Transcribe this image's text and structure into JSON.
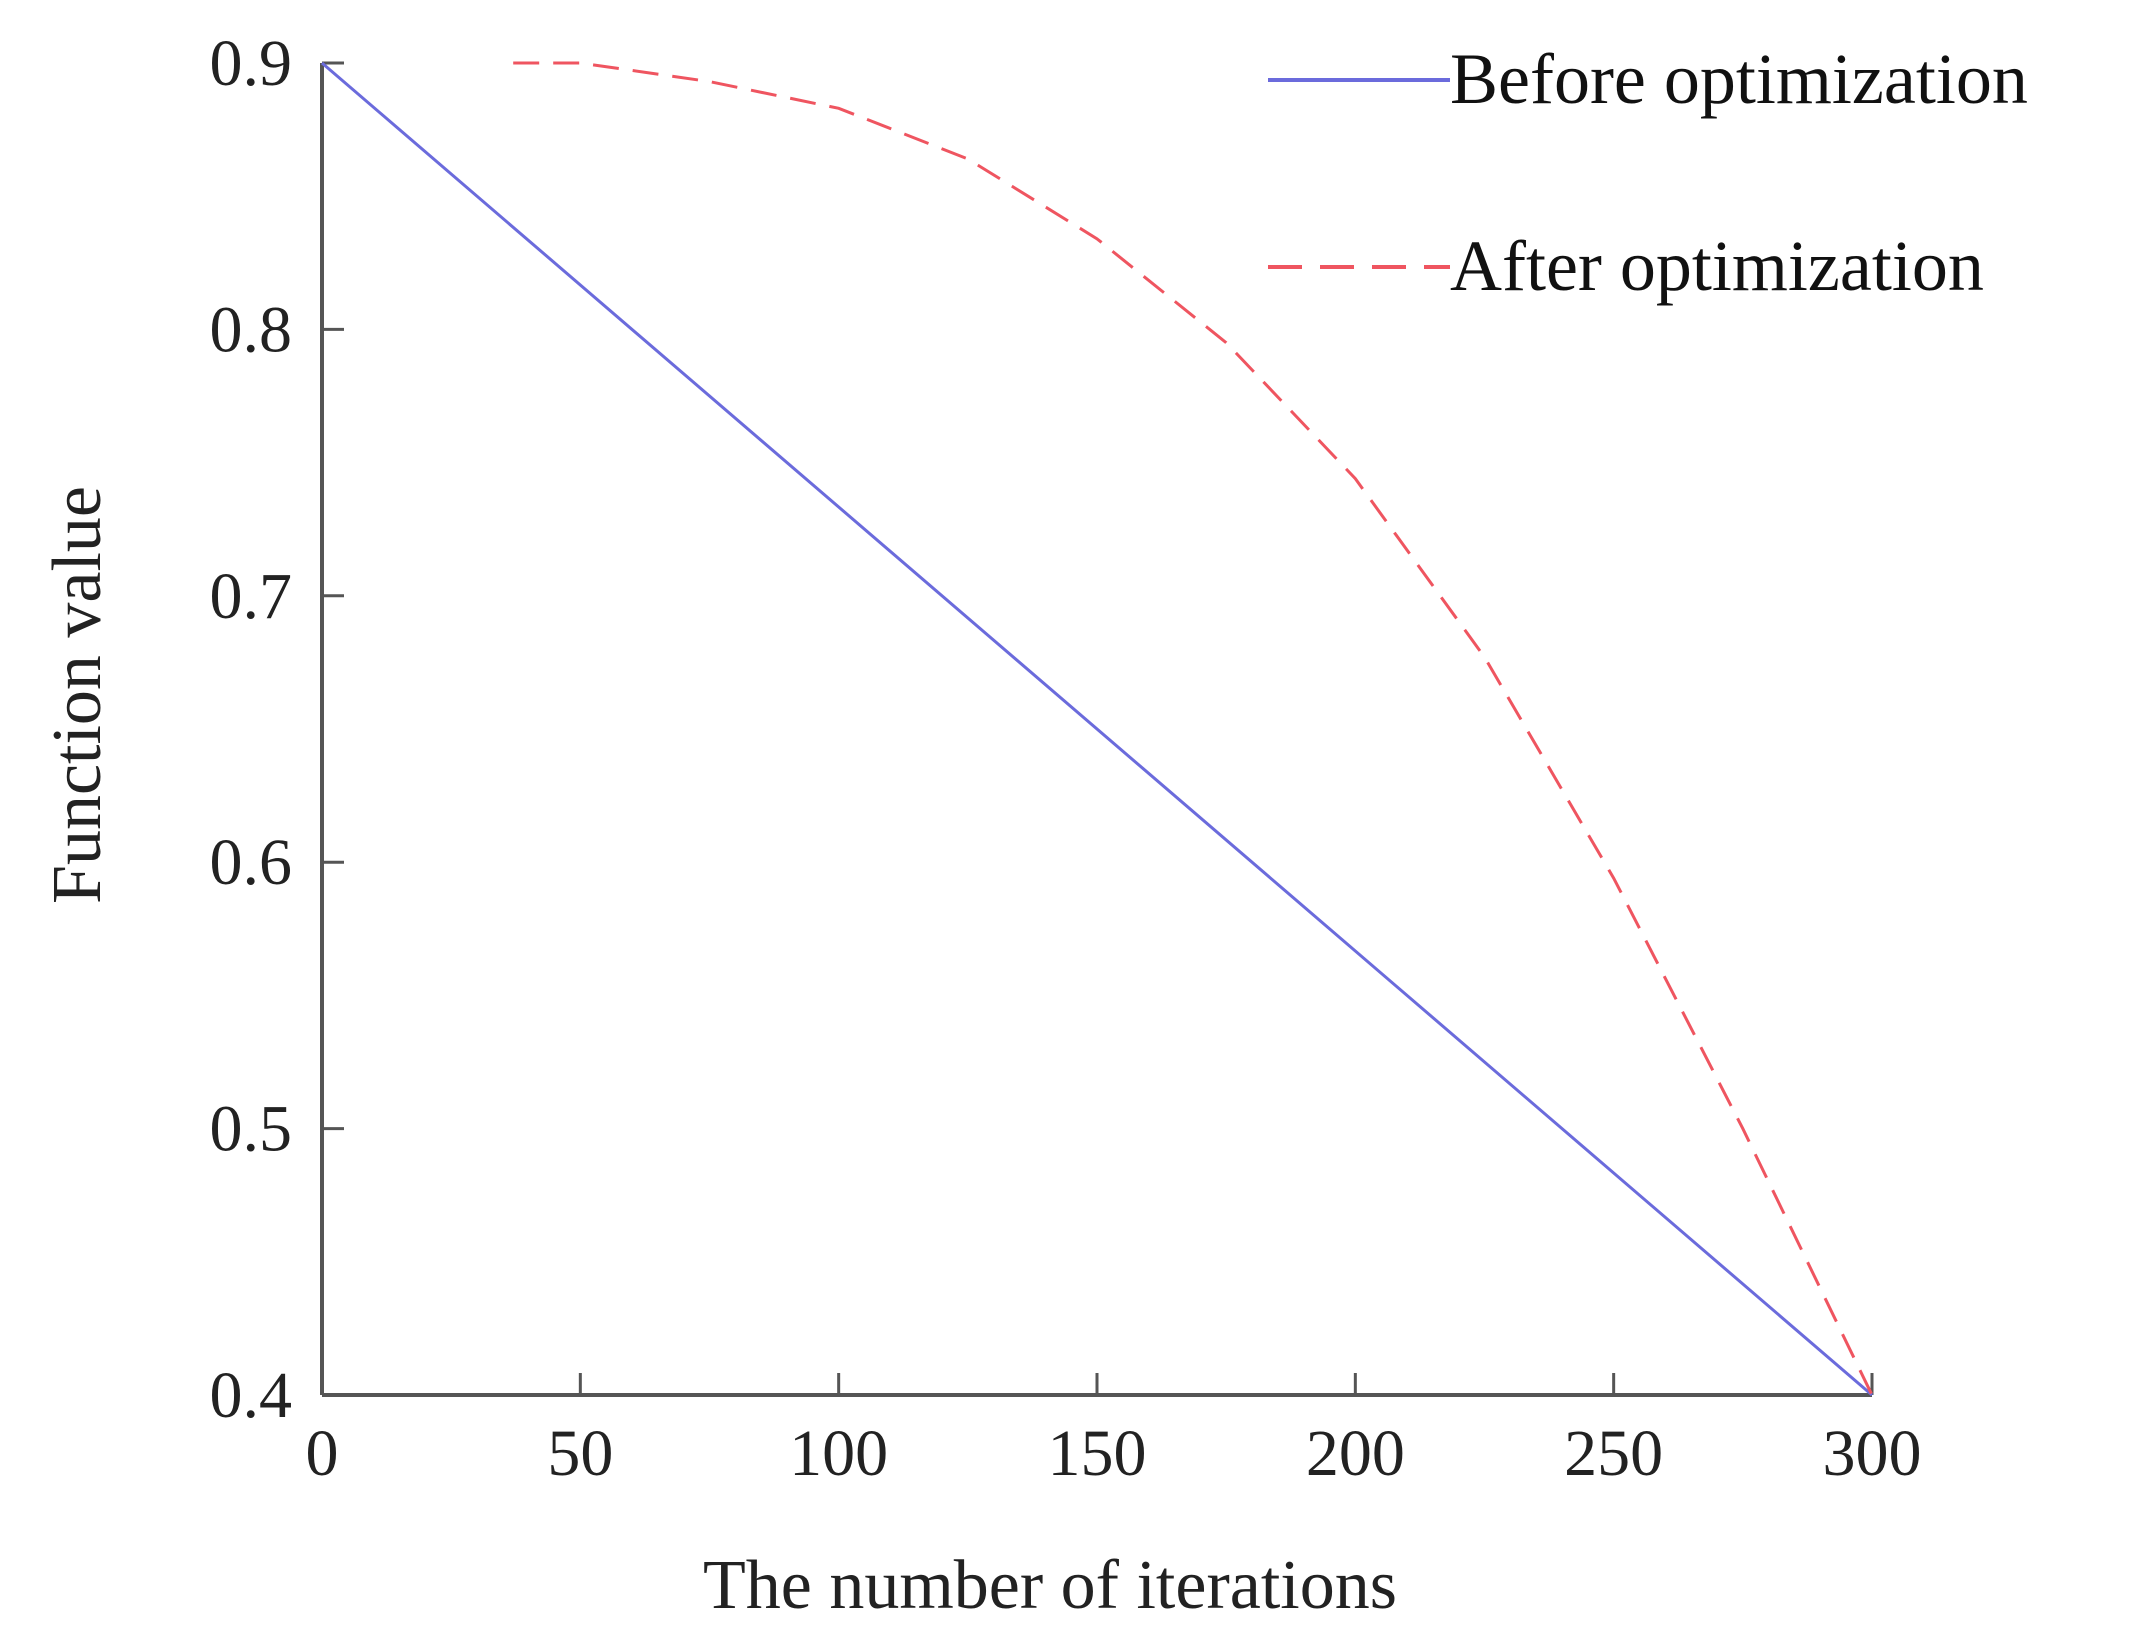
{
  "chart_data": {
    "type": "line",
    "title": "",
    "xlabel": "The number of iterations",
    "ylabel": "Function value",
    "xlim": [
      0,
      300
    ],
    "ylim": [
      0.4,
      0.9
    ],
    "x_ticks": [
      0,
      50,
      100,
      150,
      200,
      250,
      300
    ],
    "x_tick_labels": [
      "0",
      "50",
      "100",
      "150",
      "200",
      "250",
      "300"
    ],
    "y_ticks": [
      0.4,
      0.5,
      0.6,
      0.7,
      0.8,
      0.9
    ],
    "y_tick_labels": [
      "0.4",
      "0.5",
      "0.6",
      "0.7",
      "0.8",
      "0.9"
    ],
    "grid": false,
    "legend_position": "top-right",
    "series": [
      {
        "name": "Before optimization",
        "style": "solid",
        "color": "#6b6bdc",
        "x": [
          0,
          300
        ],
        "y": [
          0.9,
          0.4
        ]
      },
      {
        "name": "After optimization",
        "style": "dashed",
        "color": "#ef5560",
        "x": [
          37,
          50,
          75,
          100,
          125,
          150,
          175,
          200,
          225,
          250,
          275,
          300
        ],
        "y": [
          0.9,
          0.9,
          0.893,
          0.883,
          0.864,
          0.834,
          0.795,
          0.744,
          0.677,
          0.594,
          0.5,
          0.4
        ]
      }
    ]
  }
}
